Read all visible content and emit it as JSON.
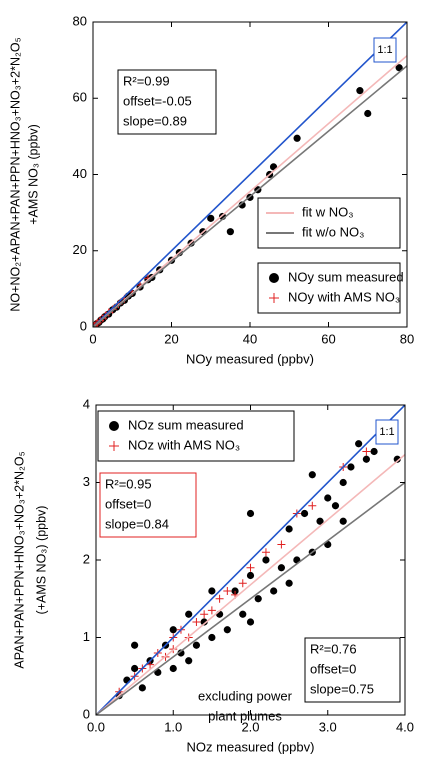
{
  "chart_data": [
    {
      "type": "scatter",
      "xlabel": "NOy measured (ppbv)",
      "ylabel": [
        "NO+NO₂+APAN+PAN+PPN+HNO₃+NO₃+2*N₂O₅",
        "+AMS NO₃ (ppbv)"
      ],
      "xlim": [
        0,
        80
      ],
      "ylim": [
        0,
        80
      ],
      "xticks": [
        0,
        20,
        40,
        60,
        80
      ],
      "yticks": [
        0,
        20,
        40,
        60,
        80
      ],
      "series": [
        {
          "line": true,
          "color": "#2255cc",
          "x": [
            0,
            80
          ],
          "values": [
            0,
            80
          ]
        },
        {
          "name": "fit w NO₃",
          "line": true,
          "color": "#f4b8b8",
          "x": [
            0,
            80
          ],
          "values": [
            -0.05,
            71.15
          ]
        },
        {
          "name": "fit w/o NO₃",
          "line": true,
          "color": "#777777",
          "x": [
            0,
            80
          ],
          "values": [
            0,
            68.5
          ]
        },
        {
          "name": "NOy sum measured",
          "marker": "dot",
          "color": "#000000",
          "x": [
            0.5,
            1,
            1.5,
            2,
            2.5,
            3,
            4,
            5,
            6,
            7,
            8,
            9,
            10,
            12,
            14,
            15,
            17,
            20,
            22,
            25,
            28,
            30,
            33,
            35,
            38,
            40,
            42,
            45,
            46,
            52,
            68,
            70,
            78
          ],
          "values": [
            0.4,
            0.9,
            1.2,
            1.8,
            2.1,
            2.7,
            3.4,
            4.5,
            5.2,
            6.3,
            7,
            8.1,
            8.8,
            10.5,
            12.4,
            13,
            15,
            17.5,
            19.5,
            22,
            25,
            28.5,
            29,
            25,
            32,
            34,
            36,
            40,
            42,
            49.5,
            62,
            56,
            68
          ]
        },
        {
          "name": "NOy with AMS NO₃",
          "marker": "cross",
          "color": "#e02020",
          "x": [
            0.3,
            0.8,
            1.2,
            1.8,
            2.5,
            3.2,
            4,
            5,
            6.5,
            8,
            10,
            12,
            14
          ],
          "values": [
            0.3,
            0.8,
            1.1,
            1.7,
            2.3,
            3,
            3.8,
            4.6,
            6,
            7.4,
            9.2,
            11,
            12.8
          ]
        }
      ],
      "annotations": [
        {
          "lines": [
            "R²=0.99",
            "offset=-0.05",
            "slope=0.89"
          ],
          "color": "#000000",
          "box": true
        },
        {
          "lines": [
            "1:1"
          ],
          "color": "#2255cc",
          "box": true
        }
      ]
    },
    {
      "type": "scatter",
      "xlabel": "NOz measured (ppbv)",
      "ylabel": [
        "APAN+PAN+PPN+HNO₃+NO₃+2*N₂O₅",
        "(+AMS NO₃) (ppbv)"
      ],
      "xlim": [
        0,
        4
      ],
      "ylim": [
        0,
        4
      ],
      "xticks": [
        {
          "value": 0,
          "label": "0.0"
        },
        {
          "value": 1,
          "label": "1.0"
        },
        {
          "value": 2,
          "label": "2.0"
        },
        {
          "value": 3,
          "label": "3.0"
        },
        {
          "value": 4,
          "label": "4.0"
        }
      ],
      "yticks": [
        0,
        1,
        2,
        3,
        4
      ],
      "series": [
        {
          "name": "NOz sum measured",
          "marker": "dot",
          "color": "#000000",
          "x": [
            0.3,
            0.4,
            0.5,
            0.6,
            0.7,
            0.8,
            0.9,
            1.0,
            1.0,
            1.1,
            1.2,
            1.3,
            1.4,
            1.5,
            1.5,
            1.6,
            1.7,
            1.8,
            1.9,
            2.0,
            2.0,
            2.1,
            2.2,
            2.3,
            2.4,
            2.5,
            2.5,
            2.6,
            2.7,
            2.8,
            2.9,
            3.0,
            3.0,
            3.1,
            3.2,
            3.3,
            3.4,
            3.5,
            3.6,
            3.8,
            3.9,
            2.0,
            1.2,
            0.5,
            3.2,
            2.8
          ],
          "values": [
            0.25,
            0.45,
            0.6,
            0.35,
            0.7,
            0.55,
            0.9,
            0.6,
            1.1,
            0.8,
            1.3,
            0.9,
            1.2,
            1.0,
            1.6,
            1.3,
            1.1,
            1.6,
            1.3,
            1.8,
            1.2,
            1.5,
            2.0,
            1.6,
            1.9,
            1.7,
            2.4,
            2.0,
            2.6,
            2.1,
            2.5,
            2.8,
            2.2,
            2.7,
            3.0,
            3.2,
            3.5,
            3.3,
            3.4,
            3.6,
            3.3,
            2.6,
            0.7,
            0.9,
            2.5,
            3.1
          ]
        },
        {
          "name": "NOz with AMS NO₃",
          "marker": "cross",
          "color": "#e02020",
          "x": [
            0.3,
            0.5,
            0.6,
            0.7,
            0.8,
            0.9,
            1.0,
            1.0,
            1.1,
            1.2,
            1.3,
            1.4,
            1.5,
            1.6,
            1.7,
            1.8,
            1.9,
            2.0,
            2.2,
            2.4,
            2.6,
            2.8,
            3.2,
            3.5
          ],
          "values": [
            0.3,
            0.5,
            0.6,
            0.65,
            0.8,
            0.75,
            1.0,
            0.85,
            1.1,
            1.0,
            1.2,
            1.3,
            1.35,
            1.5,
            1.6,
            1.55,
            1.7,
            1.9,
            2.1,
            2.2,
            2.6,
            2.7,
            3.2,
            3.4
          ]
        },
        {
          "line": true,
          "color": "#2255cc",
          "x": [
            0,
            4
          ],
          "values": [
            0,
            4
          ]
        },
        {
          "line": true,
          "color": "#f4b8b8",
          "x": [
            0,
            4
          ],
          "values": [
            0,
            3.36
          ]
        },
        {
          "line": true,
          "color": "#777777",
          "x": [
            0,
            4
          ],
          "values": [
            0,
            3.0
          ]
        }
      ],
      "annotations": [
        {
          "lines": [
            "R²=0.95",
            "offset=0",
            "slope=0.84"
          ],
          "color": "#e02020",
          "box": true
        },
        {
          "lines": [
            "R²=0.76",
            "offset=0",
            "slope=0.75"
          ],
          "color": "#000000",
          "box": true
        },
        {
          "lines": [
            "excluding power",
            "plant plumes"
          ],
          "color": "#000000",
          "box": false
        },
        {
          "lines": [
            "1:1"
          ],
          "color": "#2255cc",
          "box": true
        }
      ]
    }
  ]
}
